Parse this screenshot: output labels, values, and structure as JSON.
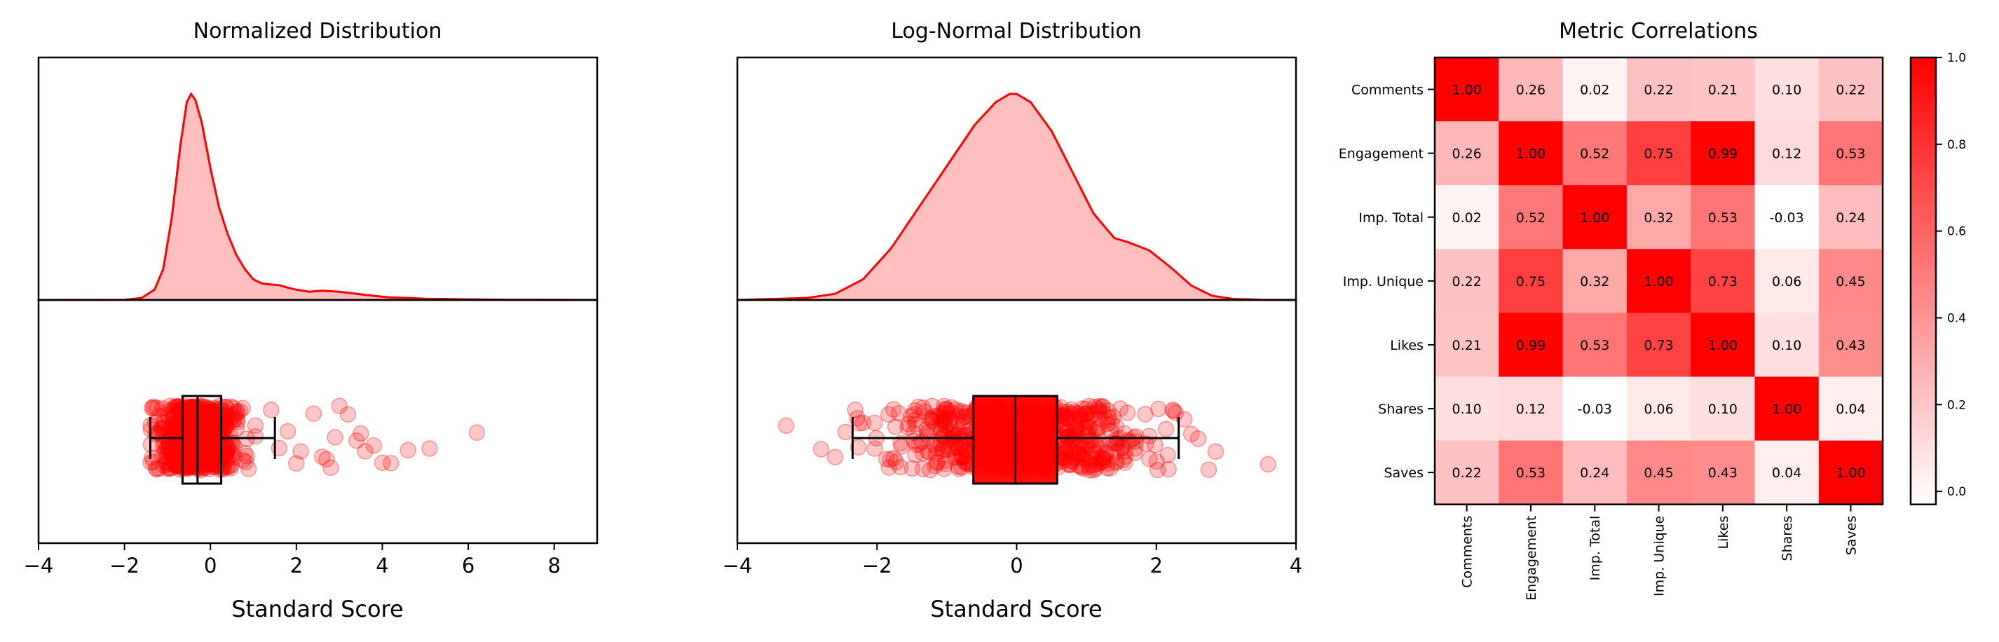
{
  "chart_data": [
    {
      "type": "density-boxplot",
      "title": "Normalized Distribution",
      "xlabel": "Standard Score",
      "xlim": [
        -4,
        9
      ],
      "xticks": [
        -4,
        -2,
        0,
        2,
        4,
        6,
        8
      ],
      "color": "#ff0000",
      "density": {
        "x": [
          -4,
          -2.0,
          -1.6,
          -1.3,
          -1.1,
          -0.9,
          -0.7,
          -0.55,
          -0.45,
          -0.35,
          -0.2,
          0.0,
          0.2,
          0.4,
          0.6,
          0.8,
          1.0,
          1.2,
          1.4,
          1.6,
          1.8,
          2.0,
          2.3,
          2.6,
          3.0,
          3.4,
          3.8,
          4.2,
          4.6,
          5.0,
          6.0,
          7.0,
          9
        ],
        "y": [
          0,
          0.001,
          0.01,
          0.05,
          0.15,
          0.4,
          0.75,
          0.96,
          1.0,
          0.97,
          0.86,
          0.64,
          0.45,
          0.32,
          0.22,
          0.15,
          0.1,
          0.08,
          0.075,
          0.072,
          0.06,
          0.05,
          0.04,
          0.045,
          0.04,
          0.03,
          0.02,
          0.012,
          0.01,
          0.006,
          0.003,
          0.001,
          0
        ]
      },
      "boxplot": {
        "whisker_low": -1.4,
        "q1": -0.65,
        "median": -0.3,
        "q3": 0.25,
        "whisker_high": 1.5
      },
      "outliers": [
        1.6,
        1.8,
        2.0,
        2.1,
        2.4,
        2.6,
        2.7,
        2.8,
        3.0,
        3.2,
        3.5,
        3.6,
        3.8,
        4.0,
        4.2,
        5.1,
        6.2,
        4.6,
        3.4,
        2.9
      ]
    },
    {
      "type": "density-boxplot",
      "title": "Log-Normal Distribution",
      "xlabel": "Standard Score",
      "xlim": [
        -4,
        4
      ],
      "xticks": [
        -4,
        -2,
        0,
        2,
        4
      ],
      "color": "#ff0000",
      "density": {
        "x": [
          -4,
          -3.0,
          -2.6,
          -2.2,
          -1.8,
          -1.4,
          -1.0,
          -0.6,
          -0.3,
          -0.1,
          0.0,
          0.2,
          0.5,
          0.8,
          1.1,
          1.4,
          1.6,
          1.9,
          2.2,
          2.5,
          2.8,
          3.1,
          3.5,
          4
        ],
        "y": [
          0,
          0.01,
          0.03,
          0.1,
          0.25,
          0.45,
          0.65,
          0.85,
          0.96,
          1.0,
          1.0,
          0.96,
          0.82,
          0.62,
          0.42,
          0.3,
          0.28,
          0.24,
          0.16,
          0.07,
          0.02,
          0.005,
          0.001,
          0
        ]
      },
      "boxplot": {
        "whisker_low": -2.35,
        "q1": -0.62,
        "median": -0.02,
        "q3": 0.58,
        "whisker_high": 2.32
      },
      "outliers": [
        -3.3,
        -2.8,
        -2.6,
        -2.45,
        2.4,
        2.5,
        2.6,
        2.75,
        2.85,
        3.6
      ]
    },
    {
      "type": "heatmap",
      "title": "Metric Correlations",
      "labels": [
        "Comments",
        "Engagement",
        "Imp. Total",
        "Imp. Unique",
        "Likes",
        "Shares",
        "Saves"
      ],
      "matrix": [
        [
          1.0,
          0.26,
          0.02,
          0.22,
          0.21,
          0.1,
          0.22
        ],
        [
          0.26,
          1.0,
          0.52,
          0.75,
          0.99,
          0.12,
          0.53
        ],
        [
          0.02,
          0.52,
          1.0,
          0.32,
          0.53,
          -0.03,
          0.24
        ],
        [
          0.22,
          0.75,
          0.32,
          1.0,
          0.73,
          0.06,
          0.45
        ],
        [
          0.21,
          0.99,
          0.53,
          0.73,
          1.0,
          0.1,
          0.43
        ],
        [
          0.1,
          0.12,
          -0.03,
          0.06,
          0.1,
          1.0,
          0.04
        ],
        [
          0.22,
          0.53,
          0.24,
          0.45,
          0.43,
          0.04,
          1.0
        ]
      ],
      "colorbar": {
        "min": -0.03,
        "max": 1.0,
        "ticks": [
          "0.0",
          "0.2",
          "0.4",
          "0.6",
          "0.8",
          "1.0"
        ],
        "colors": [
          "#ffffff",
          "#ff0000"
        ]
      }
    }
  ]
}
